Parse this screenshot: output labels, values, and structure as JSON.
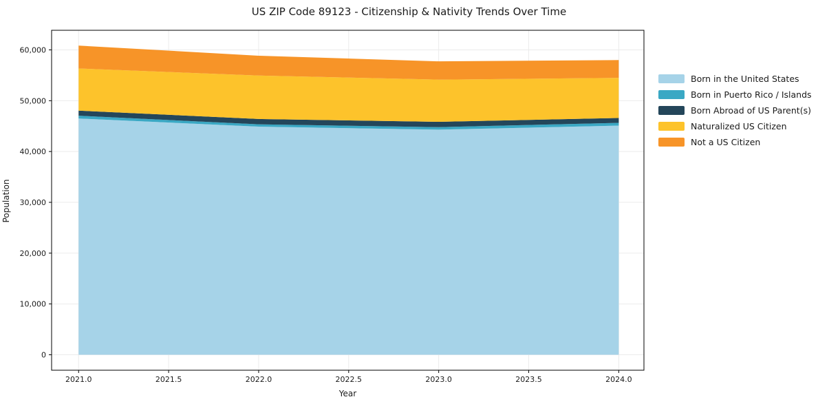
{
  "title": "US ZIP Code 89123 - Citizenship & Nativity Trends Over Time",
  "chart_data": {
    "type": "area",
    "stacked": true,
    "title": "US ZIP Code 89123 - Citizenship & Nativity Trends Over Time",
    "xlabel": "Year",
    "ylabel": "Population",
    "x": [
      2021,
      2022,
      2023,
      2024
    ],
    "series": [
      {
        "name": "Born in the United States",
        "color": "#a6d3e8",
        "values": [
          46500,
          44900,
          44300,
          45100
        ]
      },
      {
        "name": "Born in Puerto Rico / Islands",
        "color": "#3aa8c4",
        "values": [
          550,
          450,
          500,
          550
        ]
      },
      {
        "name": "Born Abroad of US Parent(s)",
        "color": "#24465a",
        "values": [
          1000,
          1050,
          1050,
          950
        ]
      },
      {
        "name": "Naturalized US Citizen",
        "color": "#fdc32b",
        "values": [
          8300,
          8550,
          8300,
          7900
        ]
      },
      {
        "name": "Not a US Citizen",
        "color": "#f79428",
        "values": [
          4500,
          3900,
          3600,
          3500
        ]
      }
    ],
    "stacked_totals": [
      60850,
      58850,
      57750,
      58000
    ],
    "x_ticks": [
      {
        "v": 2021.0,
        "label": "2021.0"
      },
      {
        "v": 2021.5,
        "label": "2021.5"
      },
      {
        "v": 2022.0,
        "label": "2022.0"
      },
      {
        "v": 2022.5,
        "label": "2022.5"
      },
      {
        "v": 2023.0,
        "label": "2023.0"
      },
      {
        "v": 2023.5,
        "label": "2023.5"
      },
      {
        "v": 2024.0,
        "label": "2024.0"
      }
    ],
    "y_ticks": [
      {
        "v": 0,
        "label": "0"
      },
      {
        "v": 10000,
        "label": "10,000"
      },
      {
        "v": 20000,
        "label": "20,000"
      },
      {
        "v": 30000,
        "label": "30,000"
      },
      {
        "v": 40000,
        "label": "40,000"
      },
      {
        "v": 50000,
        "label": "50,000"
      },
      {
        "v": 60000,
        "label": "60,000"
      }
    ],
    "xlim": [
      2020.85,
      2024.14
    ],
    "ylim": [
      -3040,
      63860
    ],
    "grid": true,
    "grid_color": "#ebebeb",
    "spine_color": "#000000",
    "tick_label_color": "#1a1a1a",
    "legend_position": "right"
  }
}
